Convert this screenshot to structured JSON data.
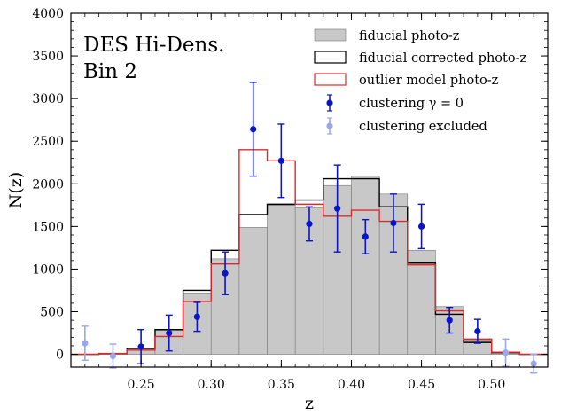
{
  "chart_data": {
    "type": "bar",
    "panel_label": [
      "DES Hi-Dens.",
      "Bin 2"
    ],
    "xlabel": "z",
    "ylabel": "N(z)",
    "xlim": [
      0.2,
      0.54
    ],
    "ylim": [
      -150,
      4000
    ],
    "xticks": [
      0.25,
      0.3,
      0.35,
      0.4,
      0.45,
      0.5
    ],
    "xtick_labels": [
      "0.25",
      "0.30",
      "0.35",
      "0.40",
      "0.45",
      "0.50"
    ],
    "yticks": [
      0,
      500,
      1000,
      1500,
      2000,
      2500,
      3000,
      3500,
      4000
    ],
    "ytick_labels": [
      "0",
      "500",
      "1000",
      "1500",
      "2000",
      "2500",
      "3000",
      "3500",
      "4000"
    ],
    "legend_position": "top-right",
    "bin_edges": [
      0.2,
      0.22,
      0.24,
      0.26,
      0.28,
      0.3,
      0.32,
      0.34,
      0.36,
      0.38,
      0.4,
      0.42,
      0.44,
      0.46,
      0.48,
      0.5,
      0.52,
      0.54
    ],
    "series": [
      {
        "name": "fiducial photo-z",
        "style": "filled-histogram",
        "color": "#c8c8c8",
        "values": [
          0,
          5,
          60,
          280,
          720,
          1120,
          1490,
          1750,
          1720,
          1980,
          2090,
          1880,
          1220,
          560,
          170,
          20,
          0
        ]
      },
      {
        "name": "fiducial corrected photo-z",
        "style": "step",
        "color": "#000000",
        "values": [
          0,
          8,
          70,
          290,
          750,
          1220,
          1640,
          1760,
          1810,
          2060,
          2060,
          1730,
          1070,
          470,
          140,
          20,
          0
        ]
      },
      {
        "name": "outlier model photo-z",
        "style": "step",
        "color": "#e0282c",
        "values": [
          0,
          10,
          50,
          210,
          620,
          1060,
          2400,
          2270,
          1760,
          1620,
          1690,
          1560,
          1050,
          510,
          180,
          25,
          0
        ]
      },
      {
        "name": "clustering γ = 0",
        "style": "errorbar",
        "color": "#0a14c8",
        "x": [
          0.25,
          0.27,
          0.29,
          0.31,
          0.33,
          0.35,
          0.37,
          0.39,
          0.41,
          0.43,
          0.45,
          0.47,
          0.49
        ],
        "y": [
          90,
          250,
          440,
          950,
          2640,
          2270,
          1530,
          1710,
          1380,
          1540,
          1500,
          400,
          270
        ],
        "yerr": [
          200,
          210,
          170,
          250,
          550,
          430,
          200,
          510,
          200,
          340,
          260,
          150,
          140
        ]
      },
      {
        "name": "clustering excluded",
        "style": "errorbar",
        "color": "#9aa6ee",
        "x": [
          0.21,
          0.23,
          0.51,
          0.53
        ],
        "y": [
          130,
          -20,
          20,
          -110
        ],
        "yerr": [
          200,
          140,
          160,
          110
        ]
      }
    ]
  }
}
